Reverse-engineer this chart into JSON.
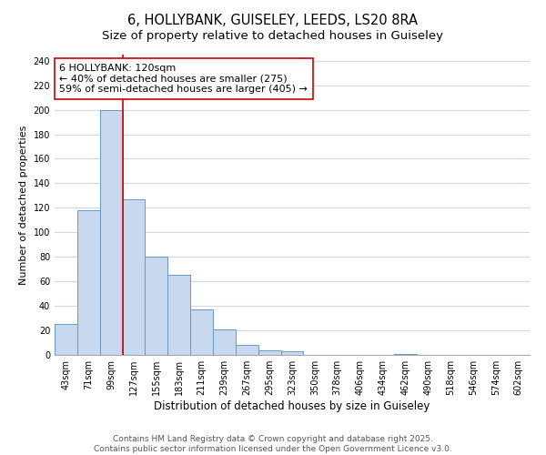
{
  "title": "6, HOLLYBANK, GUISELEY, LEEDS, LS20 8RA",
  "subtitle": "Size of property relative to detached houses in Guiseley",
  "xlabel": "Distribution of detached houses by size in Guiseley",
  "ylabel": "Number of detached properties",
  "bar_labels": [
    "43sqm",
    "71sqm",
    "99sqm",
    "127sqm",
    "155sqm",
    "183sqm",
    "211sqm",
    "239sqm",
    "267sqm",
    "295sqm",
    "323sqm",
    "350sqm",
    "378sqm",
    "406sqm",
    "434sqm",
    "462sqm",
    "490sqm",
    "518sqm",
    "546sqm",
    "574sqm",
    "602sqm"
  ],
  "bar_values": [
    25,
    118,
    200,
    127,
    80,
    65,
    37,
    21,
    8,
    4,
    3,
    0,
    0,
    0,
    0,
    1,
    0,
    0,
    0,
    0,
    0
  ],
  "bar_color": "#c8d8ee",
  "bar_edge_color": "#6699cc",
  "vline_color": "#cc0000",
  "annotation_text_line1": "6 HOLLYBANK: 120sqm",
  "annotation_text_line2": "← 40% of detached houses are smaller (275)",
  "annotation_text_line3": "59% of semi-detached houses are larger (405) →",
  "annotation_box_face": "white",
  "annotation_box_edge": "#cc0000",
  "ylim": [
    0,
    245
  ],
  "yticks": [
    0,
    20,
    40,
    60,
    80,
    100,
    120,
    140,
    160,
    180,
    200,
    220,
    240
  ],
  "footer_line1": "Contains HM Land Registry data © Crown copyright and database right 2025.",
  "footer_line2": "Contains public sector information licensed under the Open Government Licence v3.0.",
  "bg_color": "#ffffff",
  "plot_bg_color": "#ffffff",
  "grid_color": "#d0d8e8",
  "title_fontsize": 10.5,
  "subtitle_fontsize": 9.5,
  "xlabel_fontsize": 8.5,
  "ylabel_fontsize": 8,
  "tick_fontsize": 7,
  "annotation_fontsize": 8,
  "footer_fontsize": 6.5
}
